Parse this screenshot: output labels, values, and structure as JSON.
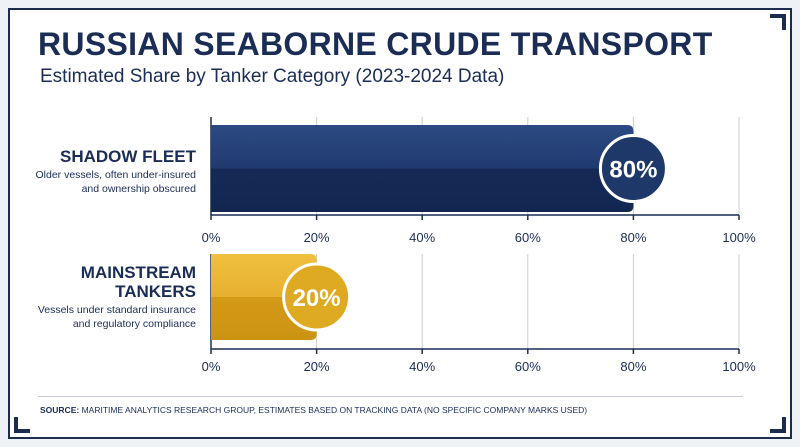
{
  "chart_data": {
    "type": "bar",
    "orientation": "horizontal",
    "title": "RUSSIAN SEABORNE CRUDE TRANSPORT",
    "subtitle": "Estimated Share by Tanker Category (2023-2024 Data)",
    "xlim": [
      0,
      100
    ],
    "x_ticks": [
      "0%",
      "20%",
      "40%",
      "60%",
      "80%",
      "100%"
    ],
    "grid": true,
    "bars": [
      {
        "category": "SHADOW FLEET",
        "description_line1": "Older vessels, often under-insured",
        "description_line2": "and ownership obscured",
        "value": 80,
        "label": "80%",
        "color": "#1e3869"
      },
      {
        "category_line1": "MAINSTREAM",
        "category_line2": "TANKERS",
        "description_line1": "Vessels under standard insurance",
        "description_line2": "and regulatory compliance",
        "value": 20,
        "label": "20%",
        "color": "#ddaa22"
      }
    ]
  },
  "footer": {
    "label": "SOURCE:",
    "text": "MARITIME ANALYTICS RESEARCH GROUP, ESTIMATES BASED ON TRACKING DATA (NO SPECIFIC COMPANY MARKS USED)"
  },
  "colors": {
    "navy": "#1b2d55",
    "gold": "#ddaa22",
    "grid": "#c8ccd3"
  }
}
